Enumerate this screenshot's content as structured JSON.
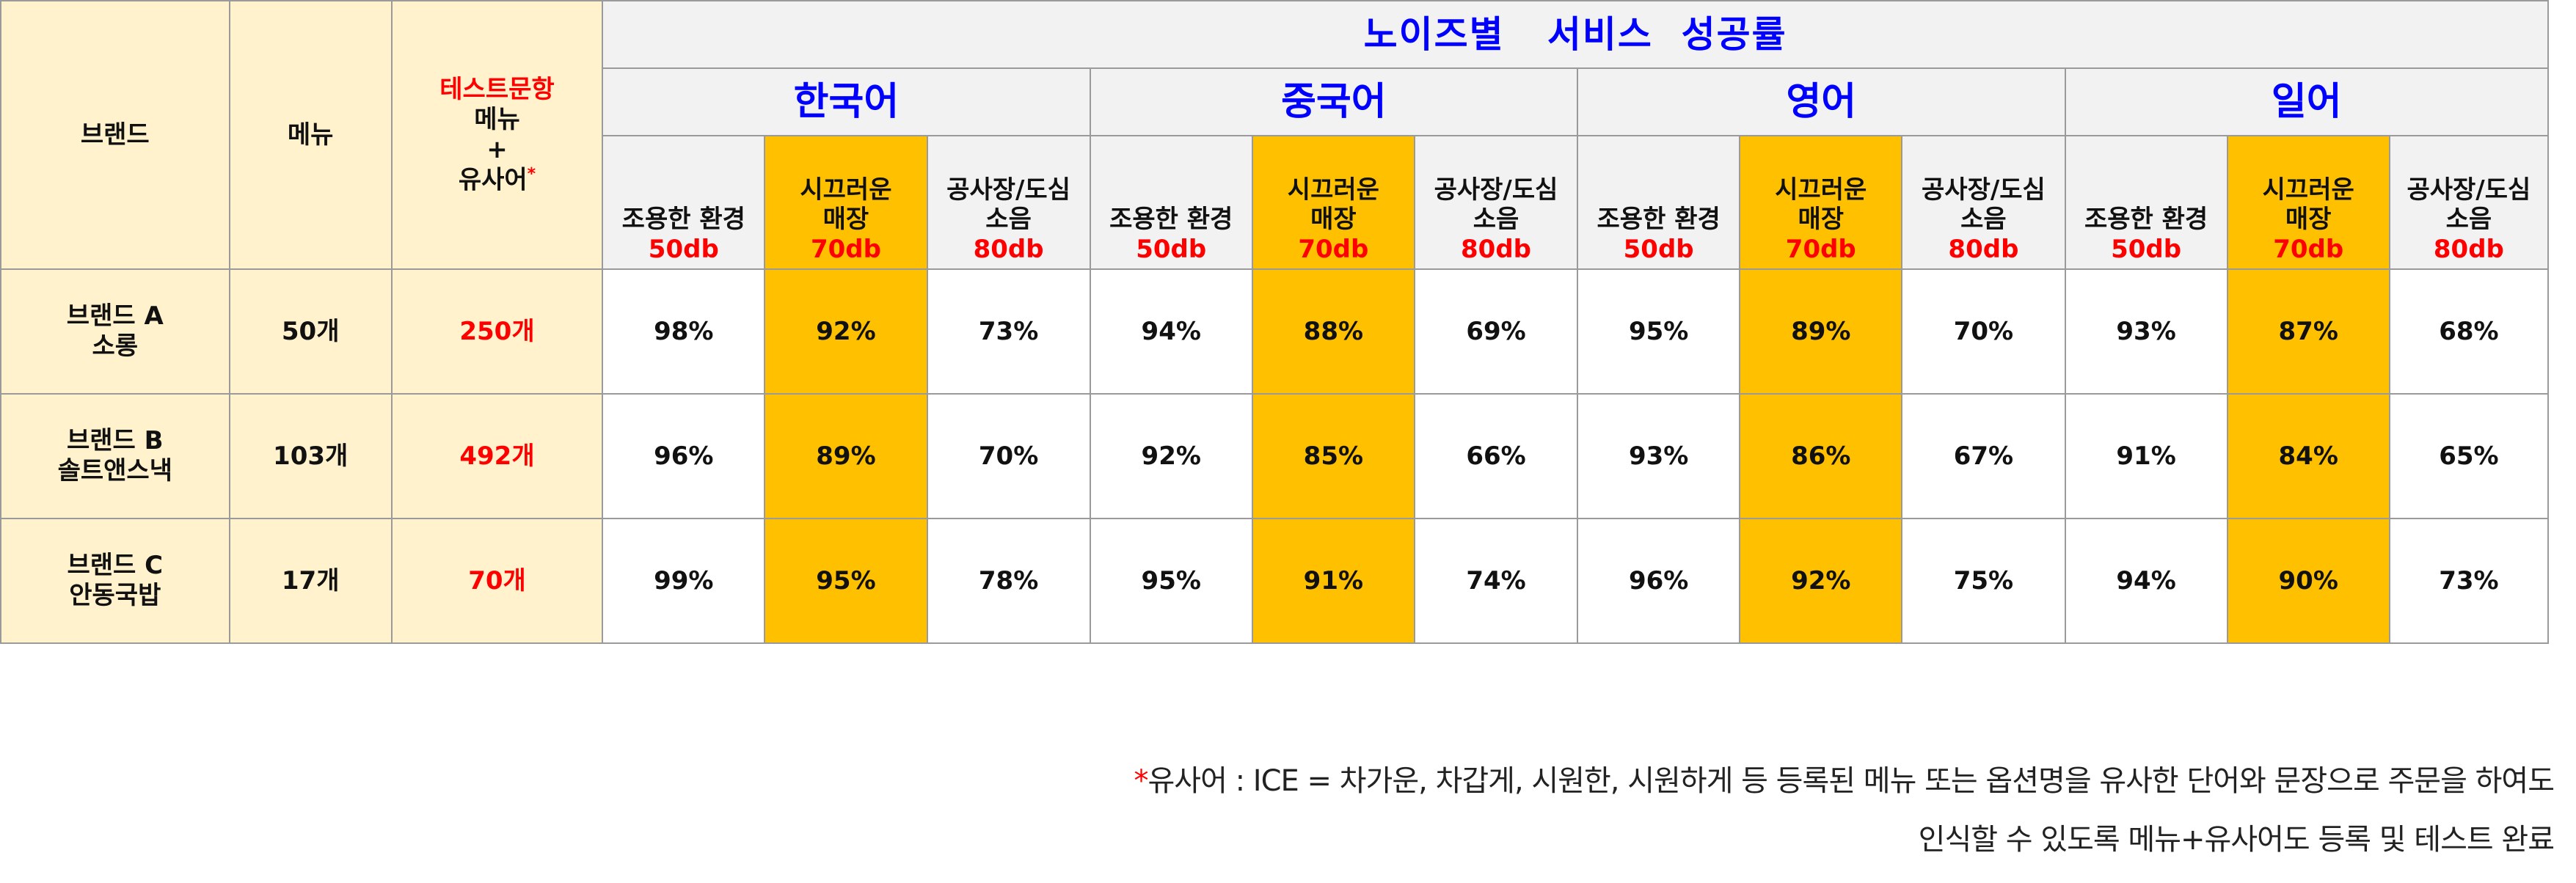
{
  "table": {
    "head": {
      "brand": "브랜드",
      "menu": "메뉴",
      "test_items_line1": "테스트문항",
      "test_items_line2": "메뉴",
      "test_items_line3": "+",
      "test_items_line4": "유사어",
      "asterisk": "*",
      "noise_title": "노이즈별   서비스  성공률",
      "languages": [
        "한국어",
        "중국어",
        "영어",
        "일어"
      ],
      "env": [
        {
          "label_1": "조용한 환경",
          "label_2": "",
          "db": "50db"
        },
        {
          "label_1": "시끄러운",
          "label_2": "매장",
          "db": "70db"
        },
        {
          "label_1": "공사장/도심",
          "label_2": "소음",
          "db": "80db"
        }
      ]
    },
    "rows": [
      {
        "brand_1": "브랜드 A",
        "brand_2": "소롱",
        "menu": "50개",
        "items": "250개",
        "values": [
          "98%",
          "92%",
          "73%",
          "94%",
          "88%",
          "69%",
          "95%",
          "89%",
          "70%",
          "93%",
          "87%",
          "68%"
        ]
      },
      {
        "brand_1": "브랜드 B",
        "brand_2": "솔트앤스낵",
        "menu": "103개",
        "items": "492개",
        "values": [
          "96%",
          "89%",
          "70%",
          "92%",
          "85%",
          "66%",
          "93%",
          "86%",
          "67%",
          "91%",
          "84%",
          "65%"
        ]
      },
      {
        "brand_1": "브랜드 C",
        "brand_2": "안동국밥",
        "menu": "17개",
        "items": "70개",
        "values": [
          "99%",
          "95%",
          "78%",
          "95%",
          "91%",
          "74%",
          "96%",
          "92%",
          "75%",
          "94%",
          "90%",
          "73%"
        ]
      }
    ]
  },
  "footnote": {
    "star": "*",
    "line1": "유사어 : ICE = 차가운, 차갑게, 시원한, 시원하게 등 등록된 메뉴 또는 옵션명을 유사한 단어와 문장으로 주문을 하여도",
    "line2": "인식할 수 있도록 메뉴+유사어도 등록 및 테스트 완료"
  },
  "colors": {
    "header_cream": "#fff2cc",
    "header_gray": "#f2f2f2",
    "highlight_gold": "#ffc000",
    "title_blue": "#0000ff",
    "accent_red": "#ff0000"
  }
}
